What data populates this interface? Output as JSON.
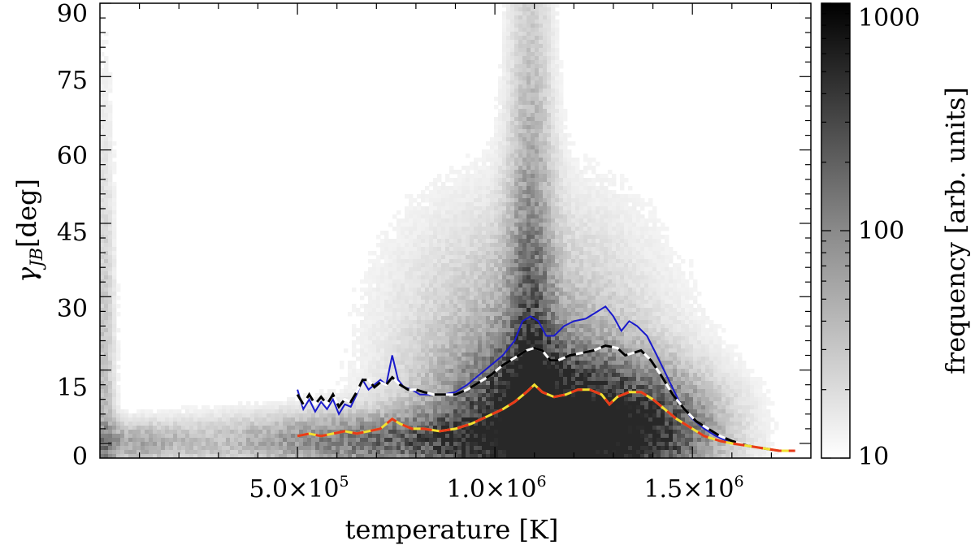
{
  "chart_data": {
    "type": "heatmap",
    "xlabel": "temperature [K]",
    "ylabel_symbol": "γ",
    "ylabel_subscript": "JB",
    "ylabel_unit": "[deg]",
    "xlim": [
      0,
      1800000
    ],
    "ylim": [
      -3,
      90
    ],
    "x_ticks": [
      {
        "value": 500000,
        "mantissa": "5.0×10",
        "exp": "5"
      },
      {
        "value": 1000000,
        "mantissa": "1.0×10",
        "exp": "6"
      },
      {
        "value": 1500000,
        "mantissa": "1.5×10",
        "exp": "6"
      }
    ],
    "y_ticks": [
      {
        "value": 0,
        "label": "0"
      },
      {
        "value": 15,
        "label": "15"
      },
      {
        "value": 30,
        "label": "30"
      },
      {
        "value": 45,
        "label": "45"
      },
      {
        "value": 60,
        "label": "60"
      },
      {
        "value": 75,
        "label": "75"
      },
      {
        "value": 90,
        "label": "90"
      }
    ],
    "colorbar": {
      "label": "frequency [arb. units]",
      "scale": "log",
      "range": [
        10,
        1000
      ],
      "ticks": [
        {
          "value": 10,
          "label": "10"
        },
        {
          "value": 100,
          "label": "100"
        },
        {
          "value": 1000,
          "label": "1000"
        }
      ],
      "colormap": "white-to-black"
    },
    "series": [
      {
        "style": "solid",
        "color": "#1a1acc",
        "points": [
          [
            500000,
            11
          ],
          [
            515000,
            7
          ],
          [
            530000,
            9
          ],
          [
            545000,
            6.5
          ],
          [
            560000,
            8.5
          ],
          [
            575000,
            7
          ],
          [
            590000,
            9
          ],
          [
            605000,
            6
          ],
          [
            620000,
            8
          ],
          [
            635000,
            7.5
          ],
          [
            650000,
            10
          ],
          [
            665000,
            13
          ],
          [
            680000,
            11
          ],
          [
            695000,
            12
          ],
          [
            710000,
            13
          ],
          [
            725000,
            12
          ],
          [
            740000,
            18
          ],
          [
            755000,
            13
          ],
          [
            770000,
            11.5
          ],
          [
            790000,
            11
          ],
          [
            810000,
            10
          ],
          [
            840000,
            10
          ],
          [
            870000,
            10
          ],
          [
            900000,
            10.5
          ],
          [
            930000,
            12
          ],
          [
            960000,
            14
          ],
          [
            990000,
            16
          ],
          [
            1020000,
            18
          ],
          [
            1050000,
            21
          ],
          [
            1070000,
            25
          ],
          [
            1090000,
            26
          ],
          [
            1110000,
            25
          ],
          [
            1130000,
            22
          ],
          [
            1150000,
            22
          ],
          [
            1175000,
            24
          ],
          [
            1200000,
            25
          ],
          [
            1230000,
            25.5
          ],
          [
            1260000,
            27
          ],
          [
            1280000,
            28
          ],
          [
            1300000,
            26
          ],
          [
            1320000,
            23
          ],
          [
            1340000,
            25
          ],
          [
            1360000,
            24
          ],
          [
            1385000,
            22
          ],
          [
            1410000,
            18
          ],
          [
            1440000,
            13
          ],
          [
            1470000,
            8
          ],
          [
            1500000,
            5
          ],
          [
            1530000,
            3
          ],
          [
            1560000,
            1.5
          ],
          [
            1600000,
            0
          ],
          [
            1640000,
            -0.5
          ],
          [
            1680000,
            -1
          ],
          [
            1720000,
            -1.5
          ],
          [
            1760000,
            -1.5
          ]
        ]
      },
      {
        "style": "dashed",
        "color": "#000000",
        "secondary_color": "#ffffff",
        "points": [
          [
            500000,
            10
          ],
          [
            515000,
            8
          ],
          [
            530000,
            10
          ],
          [
            545000,
            8
          ],
          [
            560000,
            9.5
          ],
          [
            575000,
            8
          ],
          [
            590000,
            10
          ],
          [
            605000,
            7.5
          ],
          [
            620000,
            9
          ],
          [
            635000,
            8.5
          ],
          [
            650000,
            10.5
          ],
          [
            665000,
            13
          ],
          [
            680000,
            13
          ],
          [
            695000,
            11.5
          ],
          [
            710000,
            12.5
          ],
          [
            725000,
            12
          ],
          [
            740000,
            13.5
          ],
          [
            760000,
            12
          ],
          [
            780000,
            11
          ],
          [
            800000,
            11
          ],
          [
            820000,
            10.5
          ],
          [
            845000,
            10
          ],
          [
            870000,
            10
          ],
          [
            900000,
            10
          ],
          [
            930000,
            11
          ],
          [
            960000,
            12.5
          ],
          [
            990000,
            14
          ],
          [
            1020000,
            16
          ],
          [
            1050000,
            17.5
          ],
          [
            1080000,
            19
          ],
          [
            1100000,
            19.5
          ],
          [
            1120000,
            19
          ],
          [
            1140000,
            17
          ],
          [
            1160000,
            17
          ],
          [
            1190000,
            18
          ],
          [
            1220000,
            18.5
          ],
          [
            1250000,
            19
          ],
          [
            1280000,
            20
          ],
          [
            1310000,
            19.5
          ],
          [
            1330000,
            18
          ],
          [
            1350000,
            18.5
          ],
          [
            1370000,
            19
          ],
          [
            1395000,
            17
          ],
          [
            1420000,
            14
          ],
          [
            1450000,
            10
          ],
          [
            1480000,
            7
          ],
          [
            1510000,
            4.5
          ],
          [
            1540000,
            3
          ],
          [
            1570000,
            1.5
          ],
          [
            1600000,
            0.5
          ],
          [
            1640000,
            -0.5
          ],
          [
            1680000,
            -1
          ],
          [
            1720000,
            -1.5
          ],
          [
            1760000,
            -1.5
          ]
        ]
      },
      {
        "style": "dashed",
        "color": "#e83a1a",
        "secondary_color": "#f2e030",
        "points": [
          [
            500000,
            1.5
          ],
          [
            530000,
            2
          ],
          [
            560000,
            1.5
          ],
          [
            590000,
            2
          ],
          [
            620000,
            2.5
          ],
          [
            650000,
            2
          ],
          [
            680000,
            2.5
          ],
          [
            710000,
            3
          ],
          [
            740000,
            5
          ],
          [
            760000,
            4
          ],
          [
            790000,
            3
          ],
          [
            820000,
            3
          ],
          [
            860000,
            2.5
          ],
          [
            900000,
            3
          ],
          [
            940000,
            4
          ],
          [
            980000,
            5.5
          ],
          [
            1020000,
            7
          ],
          [
            1050000,
            8.5
          ],
          [
            1080000,
            10.5
          ],
          [
            1100000,
            12
          ],
          [
            1120000,
            10.5
          ],
          [
            1150000,
            9.5
          ],
          [
            1180000,
            10
          ],
          [
            1210000,
            11
          ],
          [
            1240000,
            11
          ],
          [
            1270000,
            10
          ],
          [
            1290000,
            8
          ],
          [
            1310000,
            9.5
          ],
          [
            1340000,
            10.5
          ],
          [
            1370000,
            10.5
          ],
          [
            1400000,
            9
          ],
          [
            1430000,
            7
          ],
          [
            1460000,
            5
          ],
          [
            1500000,
            3
          ],
          [
            1530000,
            1.5
          ],
          [
            1570000,
            0.5
          ],
          [
            1600000,
            0
          ],
          [
            1640000,
            -0.5
          ],
          [
            1680000,
            -1
          ],
          [
            1720000,
            -1.5
          ],
          [
            1760000,
            -1.5
          ]
        ]
      }
    ],
    "density_clusters": [
      {
        "x": 1090000,
        "y": 0,
        "sx": 40000,
        "sy": 70,
        "w": 0.5
      },
      {
        "x": 1150000,
        "y": 4,
        "sx": 180000,
        "sy": 10,
        "w": 1.0
      },
      {
        "x": 700000,
        "y": 0.5,
        "sx": 300000,
        "sy": 4,
        "w": 0.6
      },
      {
        "x": 1400000,
        "y": 2,
        "sx": 130000,
        "sy": 8,
        "w": 0.6
      },
      {
        "x": 60000,
        "y": 0,
        "sx": 120000,
        "sy": 3,
        "w": 0.35
      },
      {
        "x": 10000,
        "y": 5,
        "sx": 20000,
        "sy": 40,
        "w": 0.3
      },
      {
        "x": 1080000,
        "y": 20,
        "sx": 220000,
        "sy": 20,
        "w": 0.35
      }
    ]
  }
}
